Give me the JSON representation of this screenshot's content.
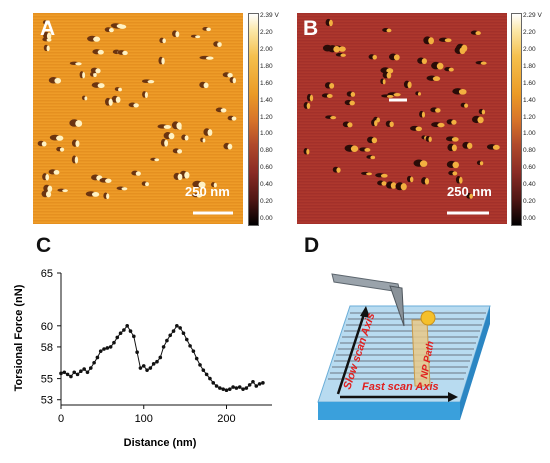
{
  "panels": {
    "a": {
      "letter": "A",
      "scale_label": "250 nm",
      "colorbar_ticks": [
        "2.39 V",
        "2.20",
        "2.00",
        "1.80",
        "1.60",
        "1.40",
        "1.20",
        "1.00",
        "0.80",
        "0.60",
        "0.40",
        "0.20",
        "0.00"
      ],
      "background": "#e9931f"
    },
    "b": {
      "letter": "B",
      "scale_label": "250 nm",
      "colorbar_ticks": [
        "2.29 V",
        "2.20",
        "2.00",
        "1.80",
        "1.60",
        "1.40",
        "1.20",
        "1.00",
        "0.80",
        "0.60",
        "0.40",
        "0.20",
        "0.00"
      ],
      "background": "#a8322a"
    },
    "c": {
      "letter": "C"
    },
    "d": {
      "letter": "D",
      "slow_scan_label": "Slow scan Axis",
      "fast_scan_label": "Fast scan Axis",
      "np_path_label": "NP Path",
      "text_color": "#e02020"
    }
  },
  "chart_data": {
    "type": "line",
    "xlabel": "Distance (nm)",
    "ylabel": "Torsional Force (nN)",
    "xlim": [
      0,
      255
    ],
    "ylim": [
      52.5,
      65
    ],
    "x_ticks": [
      0,
      100,
      200
    ],
    "y_ticks": [
      53,
      55,
      58,
      60,
      65
    ],
    "y_tick_labels": [
      "53",
      "55",
      "58",
      "60",
      "65"
    ],
    "x": [
      0,
      4,
      8,
      12,
      16,
      20,
      24,
      28,
      32,
      36,
      40,
      44,
      48,
      52,
      56,
      60,
      64,
      68,
      72,
      76,
      80,
      84,
      88,
      92,
      96,
      100,
      104,
      108,
      112,
      116,
      120,
      124,
      128,
      132,
      136,
      140,
      144,
      148,
      152,
      156,
      160,
      164,
      168,
      172,
      176,
      180,
      184,
      188,
      192,
      196,
      200,
      204,
      208,
      212,
      216,
      220,
      224,
      228,
      232,
      236,
      240,
      244
    ],
    "y": [
      55.5,
      55.6,
      55.4,
      55.2,
      55.6,
      55.4,
      55.7,
      55.9,
      55.6,
      56.0,
      56.5,
      57.0,
      57.6,
      57.8,
      57.9,
      58.0,
      58.4,
      58.9,
      59.3,
      59.6,
      60.0,
      59.5,
      59.0,
      57.5,
      56.0,
      56.2,
      55.8,
      56.0,
      56.4,
      56.6,
      57.0,
      58.0,
      58.6,
      59.1,
      59.5,
      60.0,
      59.8,
      59.3,
      58.7,
      58.1,
      57.6,
      56.9,
      56.3,
      55.8,
      55.4,
      55.0,
      54.6,
      54.3,
      54.1,
      54.0,
      53.9,
      54.0,
      54.2,
      54.1,
      54.2,
      54.0,
      54.1,
      54.4,
      54.7,
      54.3,
      54.5,
      54.6
    ]
  }
}
